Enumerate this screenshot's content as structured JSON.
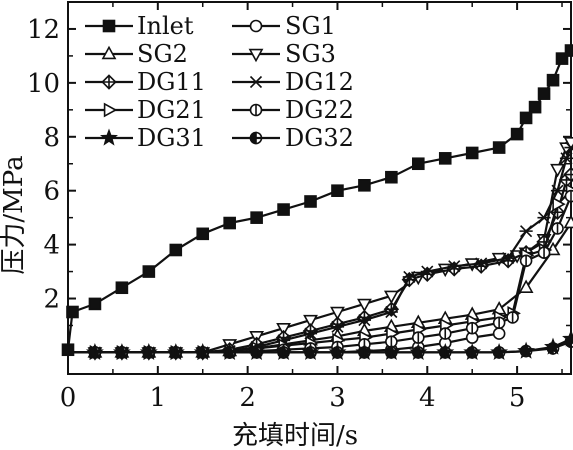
{
  "chart_data": {
    "type": "line",
    "title": "",
    "xlabel": "充填时间/s",
    "ylabel": "压力/MPa",
    "xlim": [
      0,
      5.6
    ],
    "ylim": [
      -0.8,
      13
    ],
    "xticks": [
      "0",
      "1",
      "2",
      "3",
      "4",
      "5"
    ],
    "yticks": [
      "2",
      "4",
      "6",
      "8",
      "10",
      "12"
    ],
    "grid": false,
    "legend_position": "top-left",
    "series": [
      {
        "name": "Inlet",
        "marker": "square-filled",
        "x": [
          0,
          0.05,
          0.3,
          0.6,
          0.9,
          1.2,
          1.5,
          1.8,
          2.1,
          2.4,
          2.7,
          3.0,
          3.3,
          3.6,
          3.9,
          4.2,
          4.5,
          4.8,
          5.0,
          5.1,
          5.2,
          5.3,
          5.4,
          5.5,
          5.6
        ],
        "y": [
          0.1,
          1.5,
          1.8,
          2.4,
          3.0,
          3.8,
          4.4,
          4.8,
          5.0,
          5.3,
          5.6,
          6.0,
          6.2,
          6.5,
          7.0,
          7.2,
          7.4,
          7.6,
          8.1,
          8.7,
          9.1,
          9.6,
          10.1,
          10.9,
          11.2
        ]
      },
      {
        "name": "SG1",
        "marker": "circle",
        "x": [
          0,
          0.3,
          0.6,
          0.9,
          1.2,
          1.5,
          1.8,
          2.1,
          2.4,
          2.7,
          3.0,
          3.3,
          3.6,
          3.9,
          4.2,
          4.5,
          4.8
        ],
        "y": [
          0,
          0,
          0,
          0,
          0,
          0,
          0,
          0,
          0,
          0,
          0,
          0.05,
          0.1,
          0.2,
          0.35,
          0.55,
          0.7
        ]
      },
      {
        "name": "SG2",
        "marker": "triangle-up",
        "x": [
          0,
          0.3,
          0.6,
          0.9,
          1.2,
          1.5,
          1.8,
          2.1,
          2.4,
          2.7,
          3.0,
          3.3,
          3.6,
          3.9,
          4.2,
          4.5,
          4.8,
          5.1,
          5.4,
          5.6
        ],
        "y": [
          0,
          0,
          0,
          0,
          0,
          0,
          0.05,
          0.15,
          0.3,
          0.45,
          0.6,
          0.8,
          0.95,
          1.1,
          1.25,
          1.4,
          1.6,
          2.4,
          3.8,
          4.8
        ]
      },
      {
        "name": "SG3",
        "marker": "triangle-down",
        "x": [
          0,
          0.3,
          0.6,
          0.9,
          1.2,
          1.5,
          1.8,
          2.1,
          2.4,
          2.7,
          3.0,
          3.3,
          3.6,
          3.9,
          4.2,
          4.5,
          4.8,
          5.0,
          5.1,
          5.3,
          5.45,
          5.55,
          5.6
        ],
        "y": [
          0,
          0,
          0,
          0,
          0,
          0,
          0.3,
          0.6,
          0.9,
          1.2,
          1.5,
          1.8,
          2.1,
          2.8,
          3.1,
          3.3,
          3.5,
          3.6,
          3.7,
          4.2,
          6.8,
          7.6,
          7.8
        ]
      },
      {
        "name": "DG11",
        "marker": "diamond-cross",
        "x": [
          0,
          0.3,
          0.6,
          0.9,
          1.2,
          1.5,
          1.8,
          2.1,
          2.4,
          2.7,
          3.0,
          3.3,
          3.6,
          3.8,
          4.0,
          4.3,
          4.6,
          4.9,
          5.1,
          5.3,
          5.45,
          5.55,
          5.6
        ],
        "y": [
          0,
          0,
          0,
          0,
          0,
          0,
          0.1,
          0.3,
          0.55,
          0.8,
          1.05,
          1.3,
          1.6,
          2.7,
          2.9,
          3.1,
          3.2,
          3.4,
          3.7,
          4.1,
          5.2,
          6.4,
          6.6
        ]
      },
      {
        "name": "DG12",
        "marker": "x",
        "x": [
          0,
          0.3,
          0.6,
          0.9,
          1.2,
          1.5,
          1.8,
          2.1,
          2.4,
          2.7,
          3.0,
          3.3,
          3.6,
          3.8,
          4.0,
          4.3,
          4.6,
          4.9,
          5.1,
          5.3,
          5.45,
          5.55,
          5.6
        ],
        "y": [
          0,
          0,
          0,
          0,
          0,
          0,
          0.05,
          0.2,
          0.45,
          0.7,
          0.95,
          1.2,
          1.5,
          2.8,
          3.0,
          3.2,
          3.3,
          3.5,
          4.5,
          5.0,
          6.0,
          7.2,
          7.6
        ]
      },
      {
        "name": "DG21",
        "marker": "triangle-right",
        "x": [
          0,
          0.3,
          0.6,
          0.9,
          1.2,
          1.5,
          1.8,
          2.1,
          2.4,
          2.7,
          3.0,
          3.3,
          3.6,
          3.9,
          4.2,
          4.5,
          4.8,
          4.95,
          5.1,
          5.3,
          5.45,
          5.6
        ],
        "y": [
          0,
          0,
          0,
          0,
          0,
          0,
          0.05,
          0.15,
          0.25,
          0.35,
          0.45,
          0.55,
          0.7,
          0.85,
          1.0,
          1.15,
          1.3,
          1.45,
          3.6,
          3.8,
          5.5,
          6.0
        ]
      },
      {
        "name": "DG22",
        "marker": "circle-bar",
        "x": [
          0,
          0.3,
          0.6,
          0.9,
          1.2,
          1.5,
          1.8,
          2.1,
          2.4,
          2.7,
          3.0,
          3.3,
          3.6,
          3.9,
          4.2,
          4.5,
          4.8,
          4.95,
          5.1,
          5.3,
          5.45,
          5.6
        ],
        "y": [
          0,
          0,
          0,
          0,
          0,
          0,
          0,
          0.05,
          0.1,
          0.15,
          0.2,
          0.3,
          0.4,
          0.55,
          0.7,
          0.9,
          1.1,
          1.3,
          3.4,
          3.7,
          4.6,
          5.8
        ]
      },
      {
        "name": "DG31",
        "marker": "star",
        "x": [
          0,
          0.3,
          0.6,
          0.9,
          1.2,
          1.5,
          1.8,
          2.1,
          2.4,
          2.7,
          3.0,
          3.3,
          3.6,
          3.9,
          4.2,
          4.5,
          4.8,
          5.1,
          5.4,
          5.6
        ],
        "y": [
          0,
          0,
          0,
          0,
          0,
          0,
          0,
          0,
          0,
          0,
          0,
          0,
          0,
          0,
          0,
          0,
          0,
          0.05,
          0.2,
          0.5
        ]
      },
      {
        "name": "DG32",
        "marker": "circle-half",
        "x": [
          0,
          0.3,
          0.6,
          0.9,
          1.2,
          1.5,
          1.8,
          2.1,
          2.4,
          2.7,
          3.0,
          3.3,
          3.6,
          3.9,
          4.2,
          4.5,
          4.8,
          5.1,
          5.4,
          5.6
        ],
        "y": [
          0,
          0,
          0,
          0,
          0,
          0,
          0,
          0,
          0,
          0,
          0,
          0,
          0,
          0,
          0,
          0,
          0,
          0.05,
          0.15,
          0.4
        ]
      }
    ]
  }
}
